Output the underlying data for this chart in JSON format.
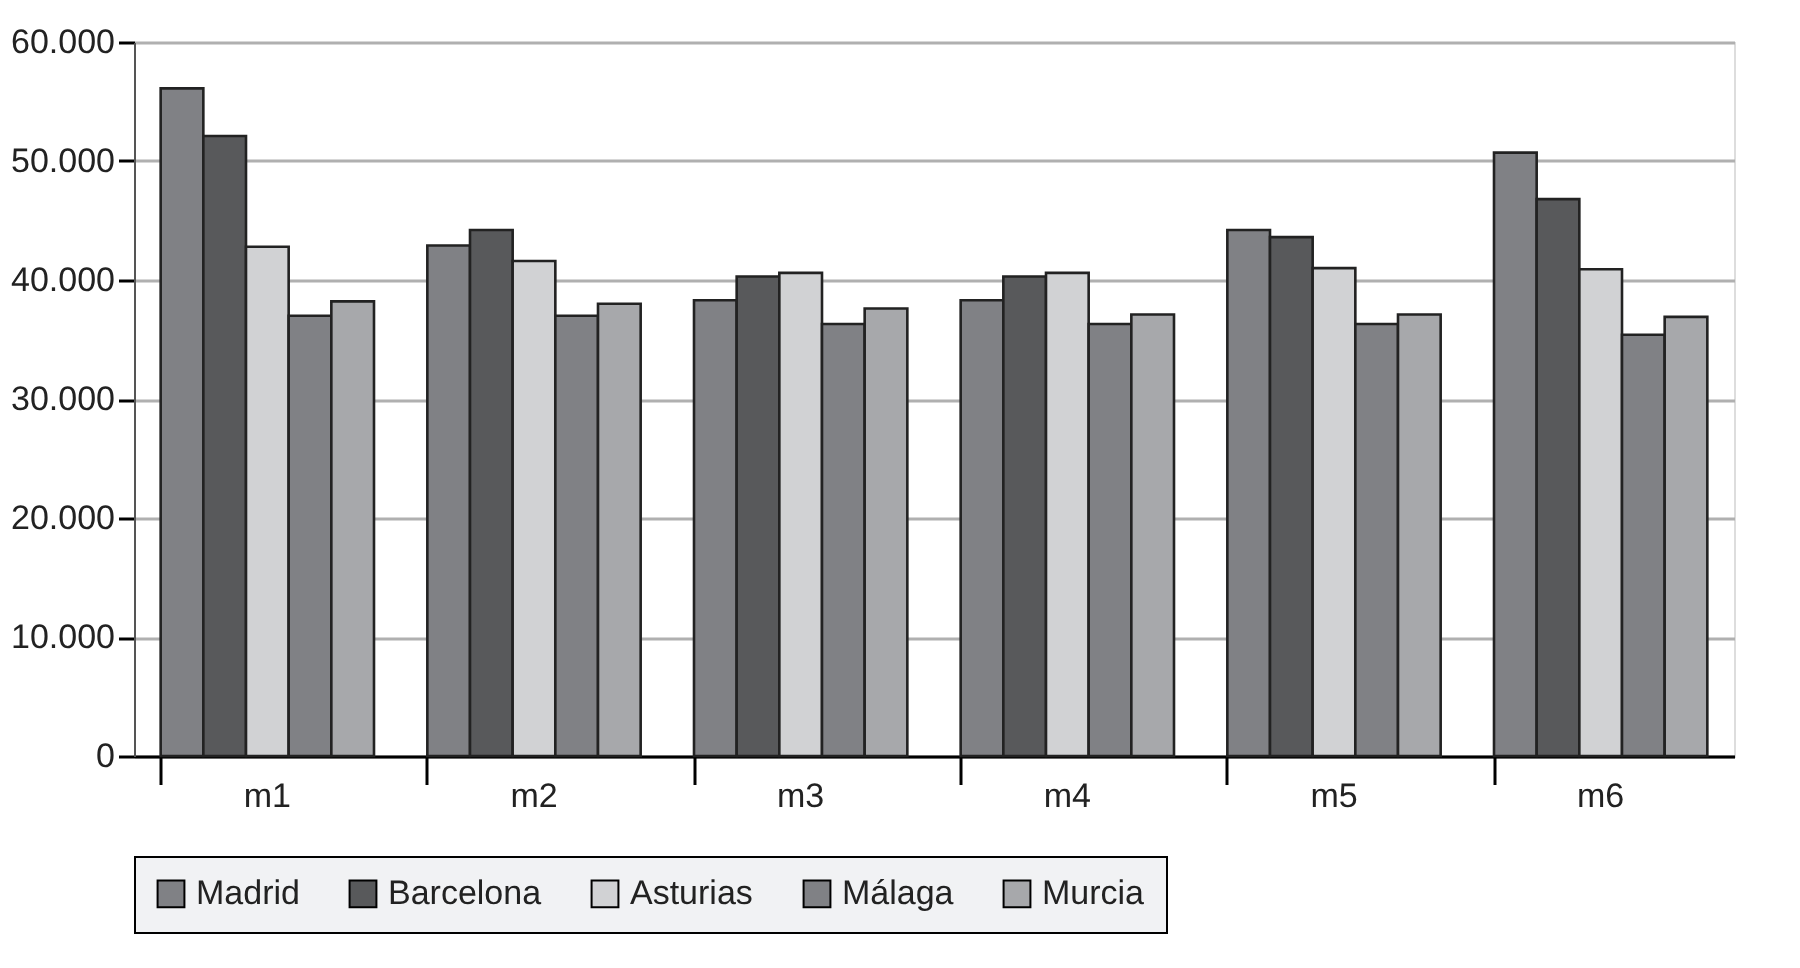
{
  "chart_data": {
    "type": "bar",
    "categories": [
      "m1",
      "m2",
      "m3",
      "m4",
      "m5",
      "m6"
    ],
    "series": [
      {
        "name": "Madrid",
        "color": "#808185",
        "values": [
          56100,
          42900,
          38300,
          38300,
          44200,
          50700
        ]
      },
      {
        "name": "Barcelona",
        "color": "#58595b",
        "values": [
          52100,
          44200,
          40300,
          40300,
          43600,
          46800
        ]
      },
      {
        "name": "Asturias",
        "color": "#d1d2d4",
        "values": [
          42800,
          41600,
          40600,
          40600,
          41000,
          40900
        ]
      },
      {
        "name": "Málaga",
        "color": "#808185",
        "values": [
          37000,
          37000,
          36300,
          36300,
          36300,
          35400
        ]
      },
      {
        "name": "Murcia",
        "color": "#a7a8ab",
        "values": [
          38200,
          38000,
          37600,
          37100,
          37100,
          36900
        ]
      }
    ],
    "ylim": [
      0,
      60000
    ],
    "yticks": [
      {
        "value": 0,
        "label": "0"
      },
      {
        "value": 10000,
        "label": "10.000"
      },
      {
        "value": 20000,
        "label": "20.000"
      },
      {
        "value": 30000,
        "label": "30.000"
      },
      {
        "value": 40000,
        "label": "40.000"
      },
      {
        "value": 50000,
        "label": "50.000"
      },
      {
        "value": 60000,
        "label": "60.000"
      }
    ],
    "grid": "y",
    "legend": "bottom"
  }
}
